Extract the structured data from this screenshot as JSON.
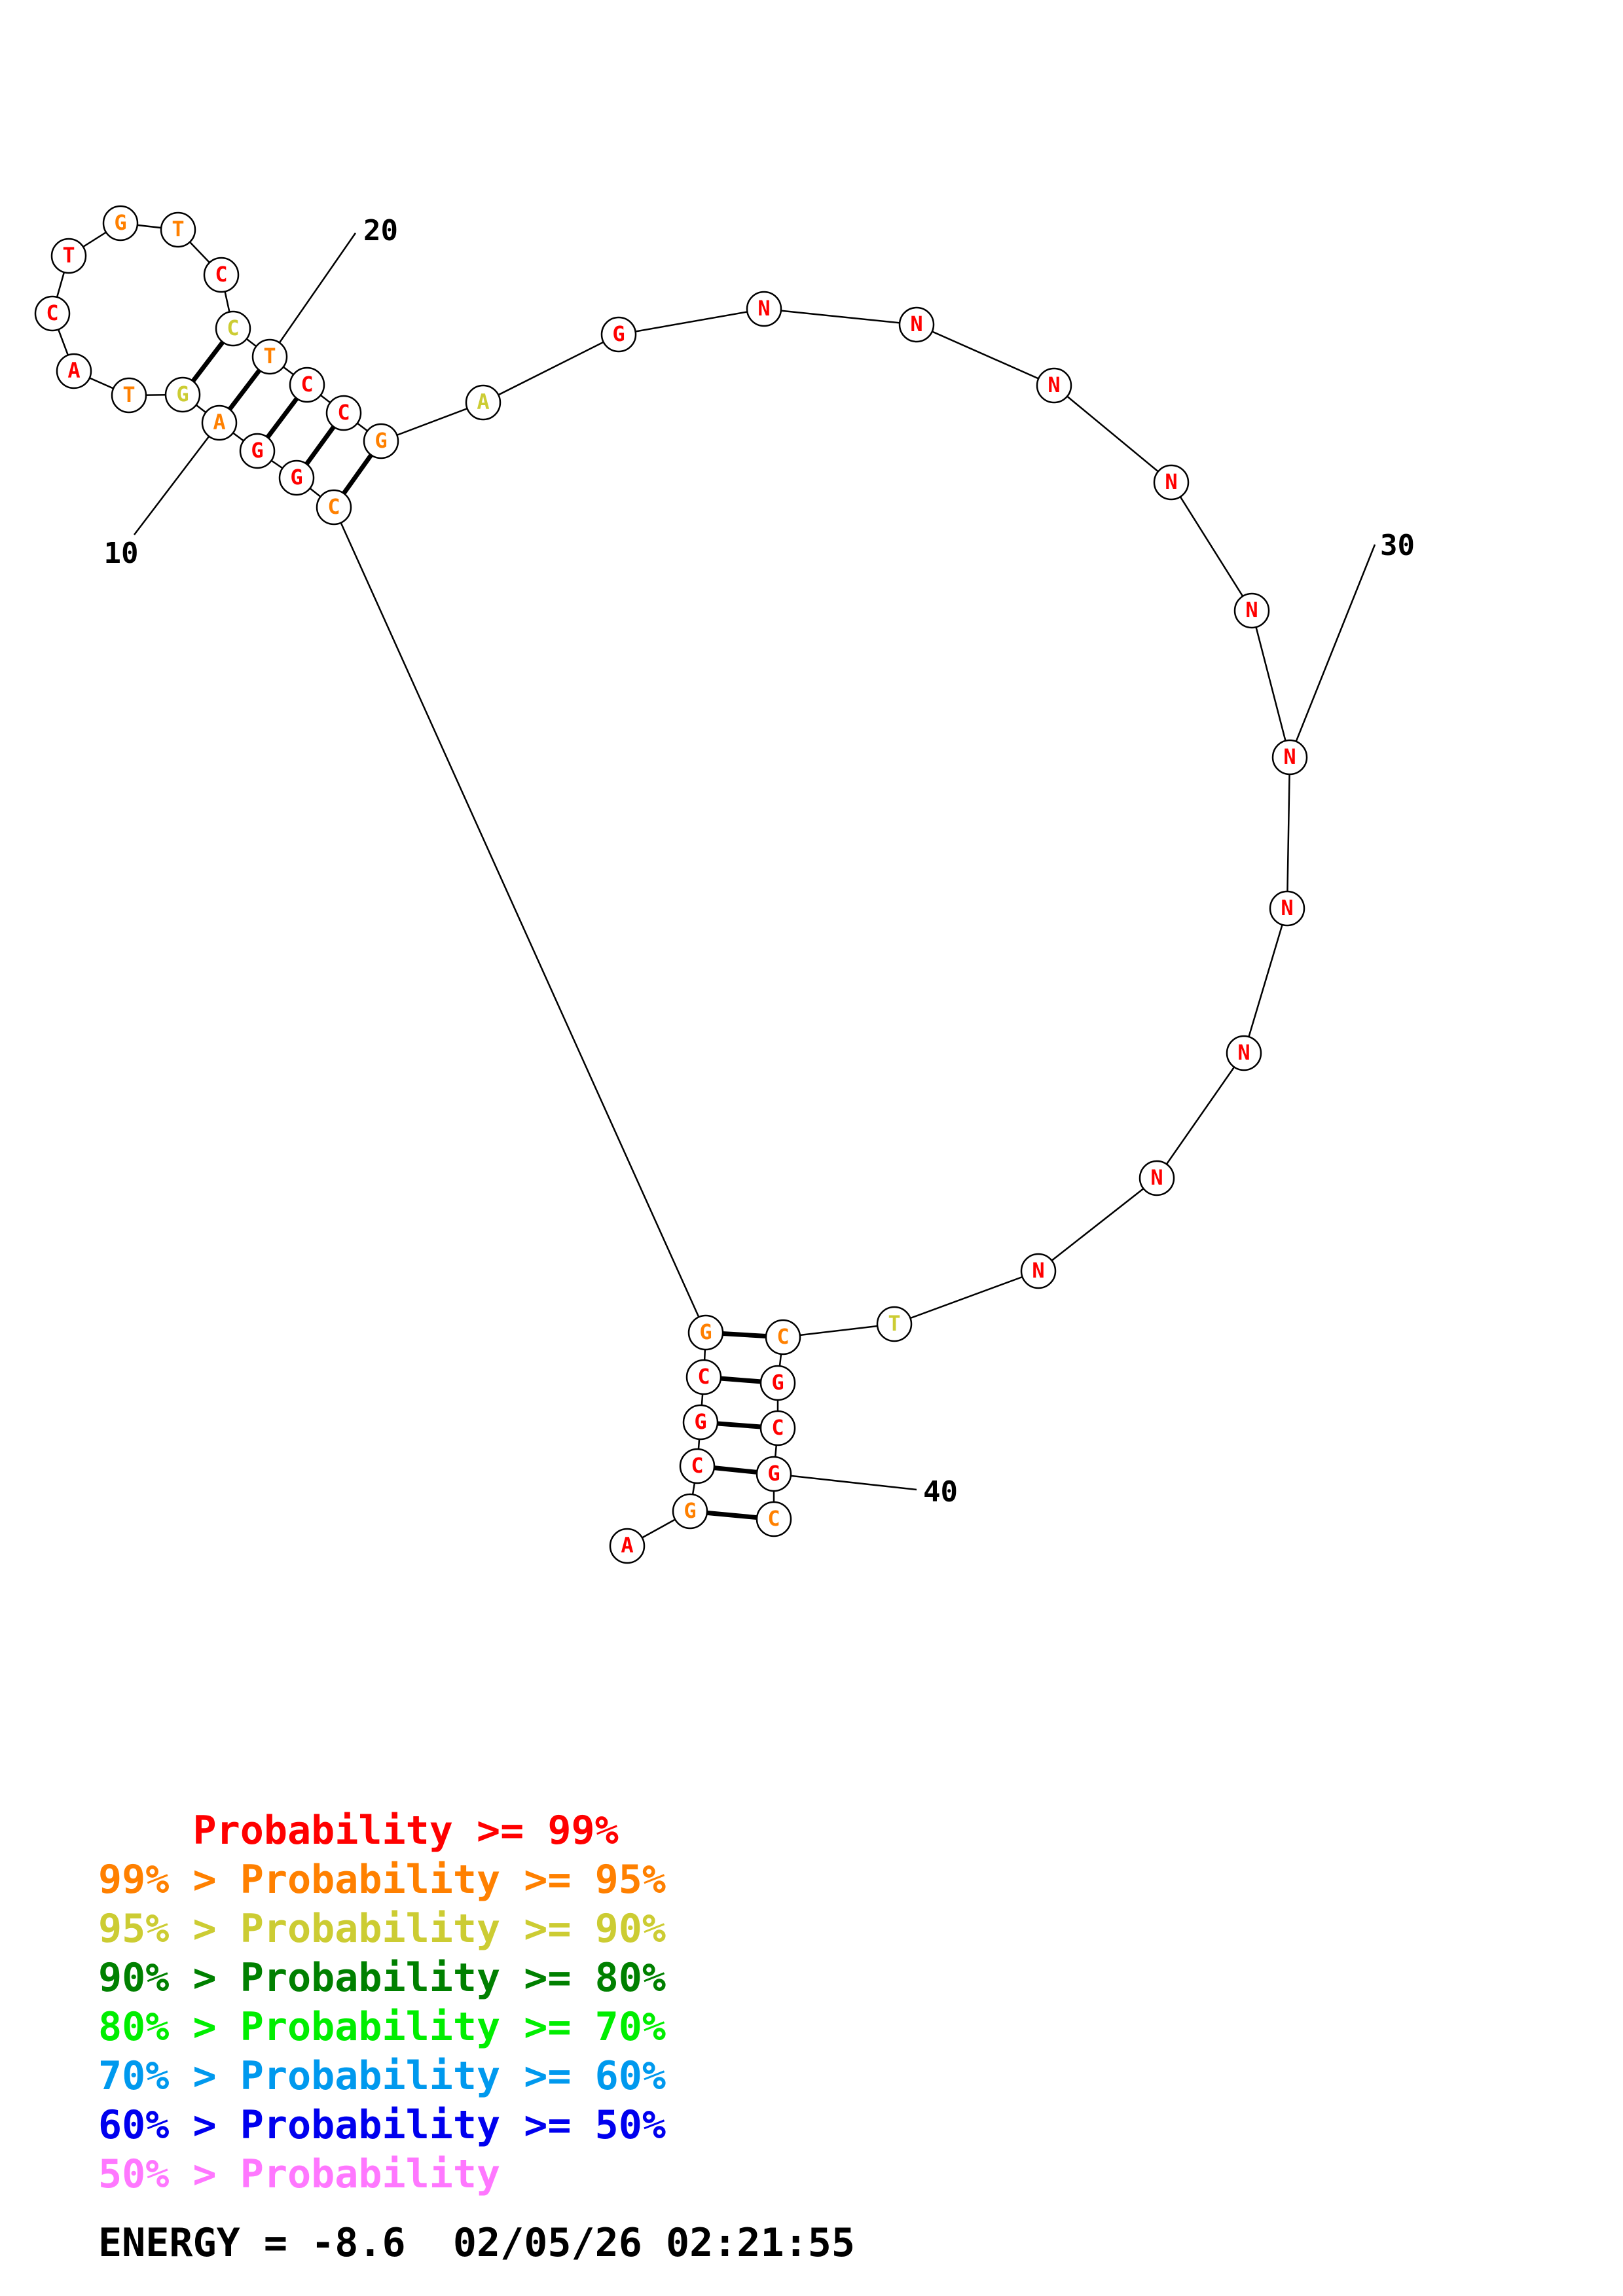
{
  "structure": {
    "nucleotides": [
      {
        "base": "A",
        "color": "#ff0000"
      },
      {
        "base": "G",
        "color": "#ff8000"
      },
      {
        "base": "C",
        "color": "#ff0000"
      },
      {
        "base": "G",
        "color": "#ff0000"
      },
      {
        "base": "C",
        "color": "#ff0000"
      },
      {
        "base": "G",
        "color": "#ff8000"
      },
      {
        "base": "C",
        "color": "#ff8000"
      },
      {
        "base": "G",
        "color": "#ff0000"
      },
      {
        "base": "G",
        "color": "#ff0000"
      },
      {
        "base": "A",
        "color": "#ff8000"
      },
      {
        "base": "G",
        "color": "#cccc33"
      },
      {
        "base": "T",
        "color": "#ff8000"
      },
      {
        "base": "A",
        "color": "#ff0000"
      },
      {
        "base": "C",
        "color": "#ff0000"
      },
      {
        "base": "T",
        "color": "#ff0000"
      },
      {
        "base": "G",
        "color": "#ff8000"
      },
      {
        "base": "T",
        "color": "#ff8000"
      },
      {
        "base": "C",
        "color": "#ff0000"
      },
      {
        "base": "C",
        "color": "#cccc33"
      },
      {
        "base": "T",
        "color": "#ff8000"
      },
      {
        "base": "C",
        "color": "#ff0000"
      },
      {
        "base": "C",
        "color": "#ff0000"
      },
      {
        "base": "G",
        "color": "#ff8000"
      },
      {
        "base": "A",
        "color": "#cccc33"
      },
      {
        "base": "G",
        "color": "#ff0000"
      },
      {
        "base": "N",
        "color": "#ff0000"
      },
      {
        "base": "N",
        "color": "#ff0000"
      },
      {
        "base": "N",
        "color": "#ff0000"
      },
      {
        "base": "N",
        "color": "#ff0000"
      },
      {
        "base": "N",
        "color": "#ff0000"
      },
      {
        "base": "N",
        "color": "#ff0000"
      },
      {
        "base": "N",
        "color": "#ff0000"
      },
      {
        "base": "N",
        "color": "#ff0000"
      },
      {
        "base": "N",
        "color": "#ff0000"
      },
      {
        "base": "N",
        "color": "#ff0000"
      },
      {
        "base": "T",
        "color": "#cccc33"
      },
      {
        "base": "C",
        "color": "#ff8000"
      },
      {
        "base": "G",
        "color": "#ff0000"
      },
      {
        "base": "C",
        "color": "#ff0000"
      },
      {
        "base": "G",
        "color": "#ff0000"
      },
      {
        "base": "C",
        "color": "#ff8000"
      }
    ],
    "pairs": [
      [
        2,
        41
      ],
      [
        3,
        40
      ],
      [
        4,
        39
      ],
      [
        5,
        38
      ],
      [
        6,
        37
      ],
      [
        7,
        23
      ],
      [
        8,
        22
      ],
      [
        9,
        21
      ],
      [
        10,
        20
      ],
      [
        11,
        19
      ]
    ],
    "position_labels": [
      {
        "text": "10",
        "index": 10
      },
      {
        "text": "20",
        "index": 20
      },
      {
        "text": "30",
        "index": 31
      },
      {
        "text": "40",
        "index": 40
      }
    ]
  },
  "legend": [
    {
      "prefix": "    ",
      "text": "Probability >= 99%",
      "color": "#ff0000"
    },
    {
      "prefix": "99% > ",
      "text": "Probability >= 95%",
      "color": "#ff8000"
    },
    {
      "prefix": "95% > ",
      "text": "Probability >= 90%",
      "color": "#cccc33"
    },
    {
      "prefix": "90% > ",
      "text": "Probability >= 80%",
      "color": "#008000"
    },
    {
      "prefix": "80% > ",
      "text": "Probability >= 70%",
      "color": "#00ee00"
    },
    {
      "prefix": "70% > ",
      "text": "Probability >= 60%",
      "color": "#0099ee"
    },
    {
      "prefix": "60% > ",
      "text": "Probability >= 50%",
      "color": "#0000ee"
    },
    {
      "prefix": "50% > ",
      "text": "Probability",
      "color": "#ff77ff"
    }
  ],
  "footer": {
    "energy": "ENERGY = -8.6",
    "timestamp": "02/05/26 02:21:55"
  }
}
